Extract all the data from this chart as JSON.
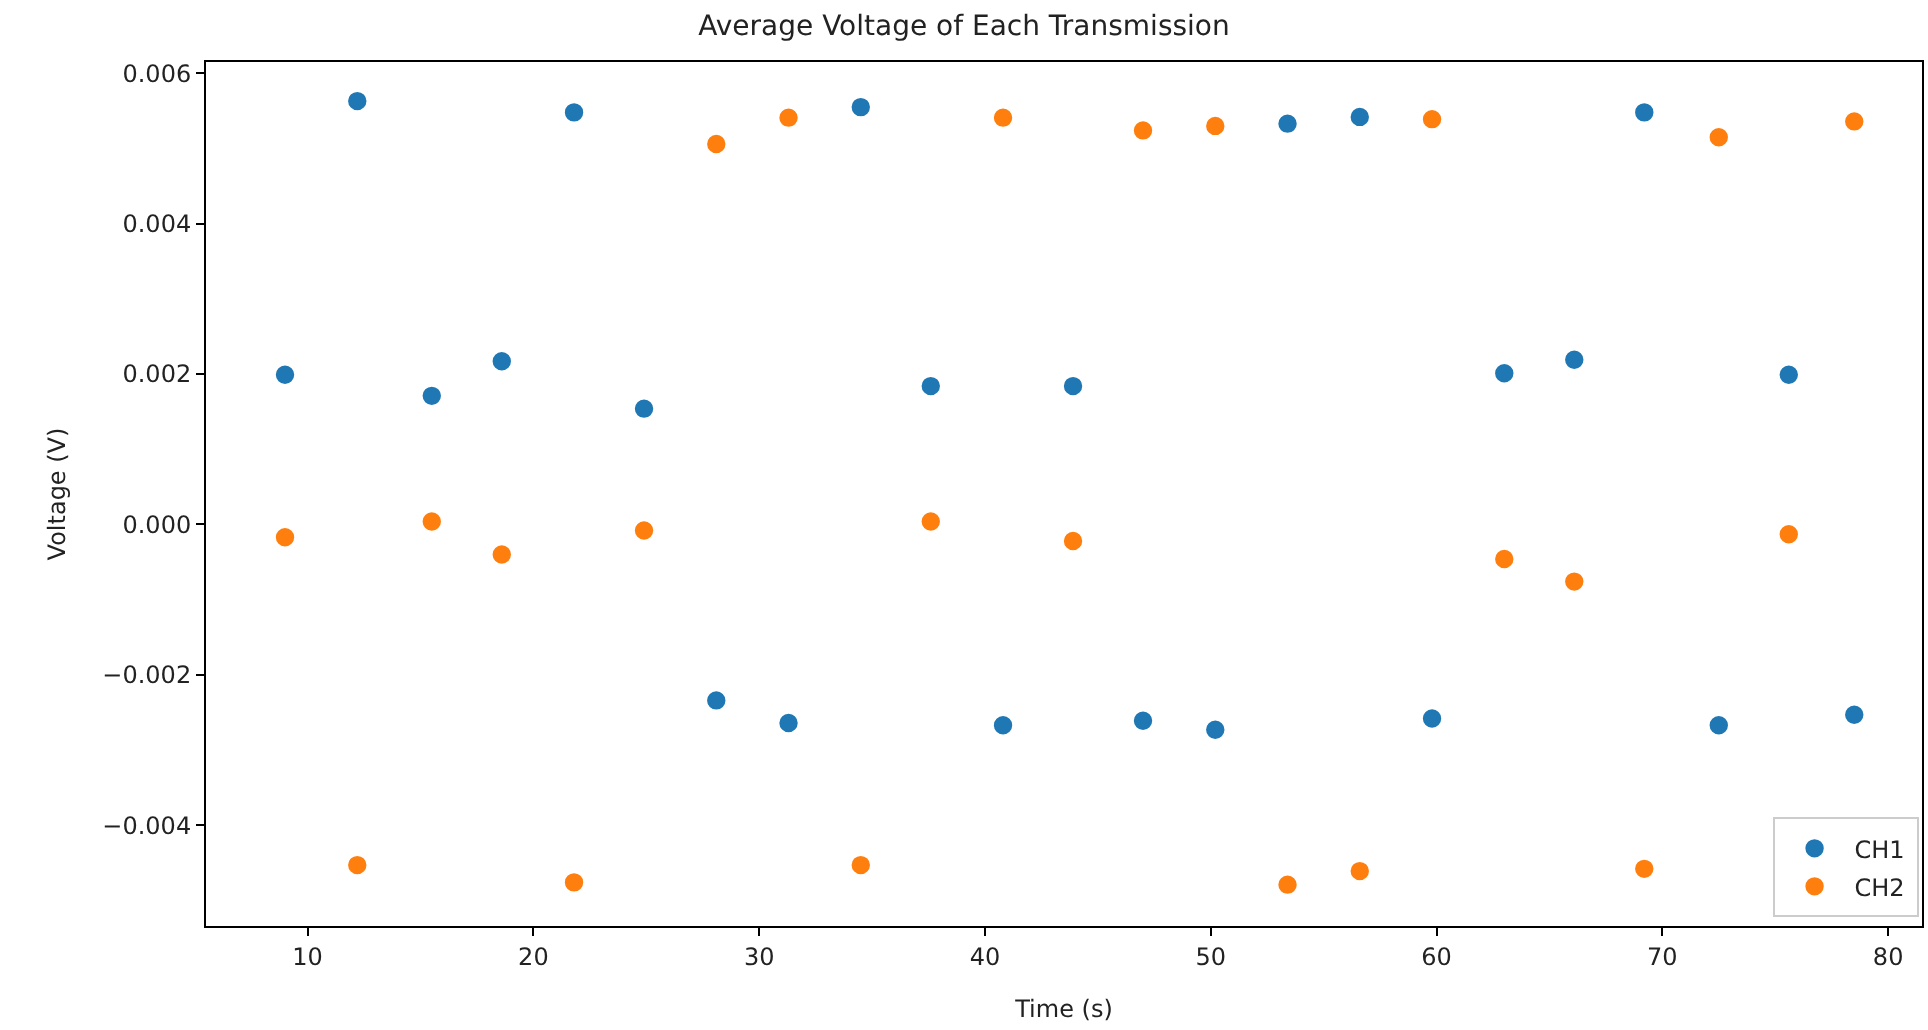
{
  "chart_data": {
    "type": "scatter",
    "title": "Average Voltage of Each Transmission",
    "xlabel": "Time (s)",
    "ylabel": "Voltage (V)",
    "x": [
      9.0,
      12.2,
      15.5,
      18.6,
      21.8,
      24.9,
      28.1,
      31.3,
      34.5,
      37.6,
      40.8,
      43.9,
      47.0,
      50.2,
      53.4,
      56.6,
      59.8,
      63.0,
      66.1,
      69.2,
      72.5,
      75.6,
      78.5
    ],
    "series": [
      {
        "name": "CH1",
        "color": "#1f77b4",
        "values": [
          0.00199,
          0.00563,
          0.00171,
          0.00217,
          0.00548,
          0.00154,
          -0.00234,
          -0.00264,
          0.00555,
          0.00184,
          -0.00267,
          0.00184,
          -0.00261,
          -0.00273,
          0.00533,
          0.00542,
          -0.00258,
          0.00201,
          0.00219,
          0.00548,
          -0.00267,
          0.00199,
          -0.00253
        ]
      },
      {
        "name": "CH2",
        "color": "#ff7f0e",
        "values": [
          -0.00017,
          -0.00453,
          4e-05,
          -0.0004,
          -0.00476,
          -8e-05,
          0.00506,
          0.00541,
          -0.00453,
          4e-05,
          0.00541,
          -0.00022,
          0.00524,
          0.0053,
          -0.00479,
          -0.00461,
          0.00539,
          -0.00046,
          -0.00076,
          -0.00458,
          0.00515,
          -0.00013,
          0.00536
        ]
      }
    ],
    "xlim": [
      5.5,
      81.5
    ],
    "xticks": [
      10,
      20,
      30,
      40,
      50,
      60,
      70,
      80
    ],
    "ylim": [
      -0.00534,
      0.00615
    ],
    "yticks": [
      {
        "value": -0.004,
        "label": "−0.004"
      },
      {
        "value": -0.002,
        "label": "−0.002"
      },
      {
        "value": 0,
        "label": "0.000"
      },
      {
        "value": 0.002,
        "label": "0.002"
      },
      {
        "value": 0.004,
        "label": "0.004"
      },
      {
        "value": 0.006,
        "label": "0.006"
      }
    ],
    "legend": "bottom right"
  }
}
